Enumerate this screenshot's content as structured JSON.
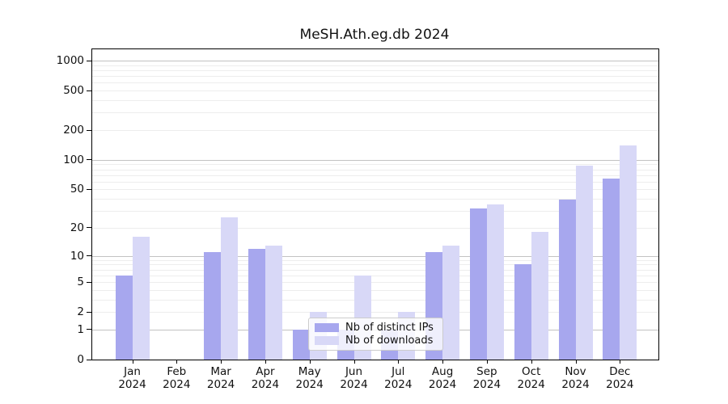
{
  "title": "MeSH.Ath.eg.db 2024",
  "colors": {
    "distinct_ips": "#a7a7ee",
    "downloads": "#d8d8f7",
    "grid_major": "#c2c2c2",
    "grid_minor": "#ededed",
    "axis": "#000000",
    "legend_border": "#cccccc"
  },
  "legend": {
    "items": [
      {
        "label": "Nb of distinct IPs",
        "series_key": "distinct_ips"
      },
      {
        "label": "Nb of downloads",
        "series_key": "downloads"
      }
    ]
  },
  "chart_data": {
    "type": "bar",
    "scale": "log1p",
    "title": "MeSH.Ath.eg.db 2024",
    "year": "2024",
    "categories": [
      "Jan",
      "Feb",
      "Mar",
      "Apr",
      "May",
      "Jun",
      "Jul",
      "Aug",
      "Sep",
      "Oct",
      "Nov",
      "Dec"
    ],
    "series": [
      {
        "name": "Nb of distinct IPs",
        "color_key": "distinct_ips",
        "values": [
          6,
          0,
          11,
          12,
          1,
          1,
          1,
          11,
          32,
          8,
          39,
          65
        ]
      },
      {
        "name": "Nb of downloads",
        "color_key": "downloads",
        "values": [
          16,
          0,
          26,
          13,
          2,
          6,
          2,
          13,
          35,
          18,
          88,
          140
        ]
      }
    ],
    "y_ticks": [
      0,
      1,
      2,
      5,
      10,
      20,
      50,
      100,
      200,
      500,
      1000
    ],
    "ylim": [
      0,
      1300
    ],
    "grid": "on",
    "legend_position": "lower-center"
  }
}
